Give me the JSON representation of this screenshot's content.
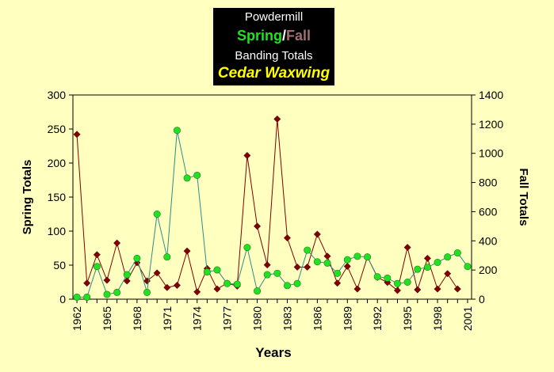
{
  "chart_data": {
    "type": "line",
    "title": {
      "line1": "Powdermill",
      "spring_word": "Spring",
      "separator": "/",
      "fall_word": "Fall",
      "line3": "Banding Totals",
      "line4": "Cedar Waxwing"
    },
    "xlabel": "Years",
    "ylabel_left": "Spring Totals",
    "ylabel_right": "Fall Totals",
    "x_ticks": [
      "1962",
      "1965",
      "1968",
      "1971",
      "1974",
      "1977",
      "1980",
      "1983",
      "1986",
      "1989",
      "1992",
      "1995",
      "1998",
      "2001"
    ],
    "y_left_ticks": [
      "0",
      "50",
      "100",
      "150",
      "200",
      "250",
      "300"
    ],
    "y_right_ticks": [
      "0",
      "200",
      "400",
      "600",
      "800",
      "1000",
      "1200",
      "1400"
    ],
    "ylim_left": [
      0,
      300
    ],
    "ylim_right": [
      0,
      1400
    ],
    "xlim": [
      1962,
      2001
    ],
    "colors": {
      "spring_marker": "#22E022",
      "spring_line": "#2E8B8B",
      "fall_marker": "#800000",
      "fall_line": "#800000",
      "plot_bg": "#FFFFC0",
      "background": "#FFFFC0"
    },
    "series": [
      {
        "name": "Spring",
        "axis": "left",
        "x": [
          1962,
          1963,
          1964,
          1965,
          1966,
          1967,
          1968,
          1969,
          1970,
          1971,
          1972,
          1973,
          1974,
          1975,
          1976,
          1977,
          1978,
          1979,
          1980,
          1981,
          1982,
          1983,
          1984,
          1985,
          1986,
          1987,
          1988,
          1989,
          1990,
          1991,
          1992,
          1993,
          1994,
          1995,
          1996,
          1997,
          1998,
          1999,
          2000,
          2001
        ],
        "values": [
          3,
          3,
          48,
          7,
          10,
          36,
          60,
          10,
          125,
          62,
          248,
          178,
          182,
          40,
          43,
          23,
          22,
          76,
          12,
          36,
          38,
          20,
          23,
          72,
          55,
          53,
          38,
          58,
          63,
          62,
          33,
          31,
          23,
          25,
          44,
          47,
          54,
          62,
          68,
          48
        ]
      },
      {
        "name": "Fall",
        "axis": "right",
        "x": [
          1962,
          1963,
          1964,
          1965,
          1966,
          1967,
          1968,
          1969,
          1970,
          1971,
          1972,
          1973,
          1974,
          1975,
          1976,
          1977,
          1978,
          1979,
          1980,
          1981,
          1982,
          1983,
          1984,
          1985,
          1986,
          1987,
          1988,
          1989,
          1990,
          1991,
          1992,
          1993,
          1994,
          1995,
          1996,
          1997,
          1998,
          1999,
          2000
        ],
        "values": [
          1130,
          110,
          305,
          130,
          385,
          125,
          250,
          125,
          180,
          80,
          95,
          330,
          50,
          210,
          70,
          110,
          90,
          985,
          500,
          235,
          1235,
          420,
          220,
          220,
          445,
          295,
          110,
          225,
          70,
          290,
          150,
          115,
          60,
          355,
          65,
          280,
          70,
          175,
          70
        ]
      }
    ]
  }
}
